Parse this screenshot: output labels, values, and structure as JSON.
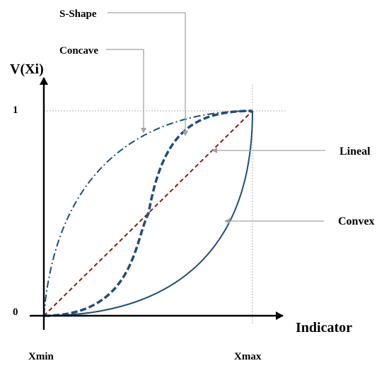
{
  "y_axis_label": "V(Xi)",
  "x_axis_label": "Indicator",
  "y_tick_top": "1",
  "y_tick_bottom": "0",
  "x_tick_left": "Xmin",
  "x_tick_right": "Xmax",
  "curves": [
    {
      "key": "s_shape",
      "label": "S-Shape",
      "style": "thick-dashed",
      "color": "#1f4e79"
    },
    {
      "key": "concave",
      "label": "Concave",
      "style": "dash-dot",
      "color": "#1f4e79"
    },
    {
      "key": "lineal",
      "label": "Lineal",
      "style": "dashed",
      "color": "#8b1a1a"
    },
    {
      "key": "convex",
      "label": "Convex",
      "style": "solid",
      "color": "#1f4e79"
    }
  ]
}
